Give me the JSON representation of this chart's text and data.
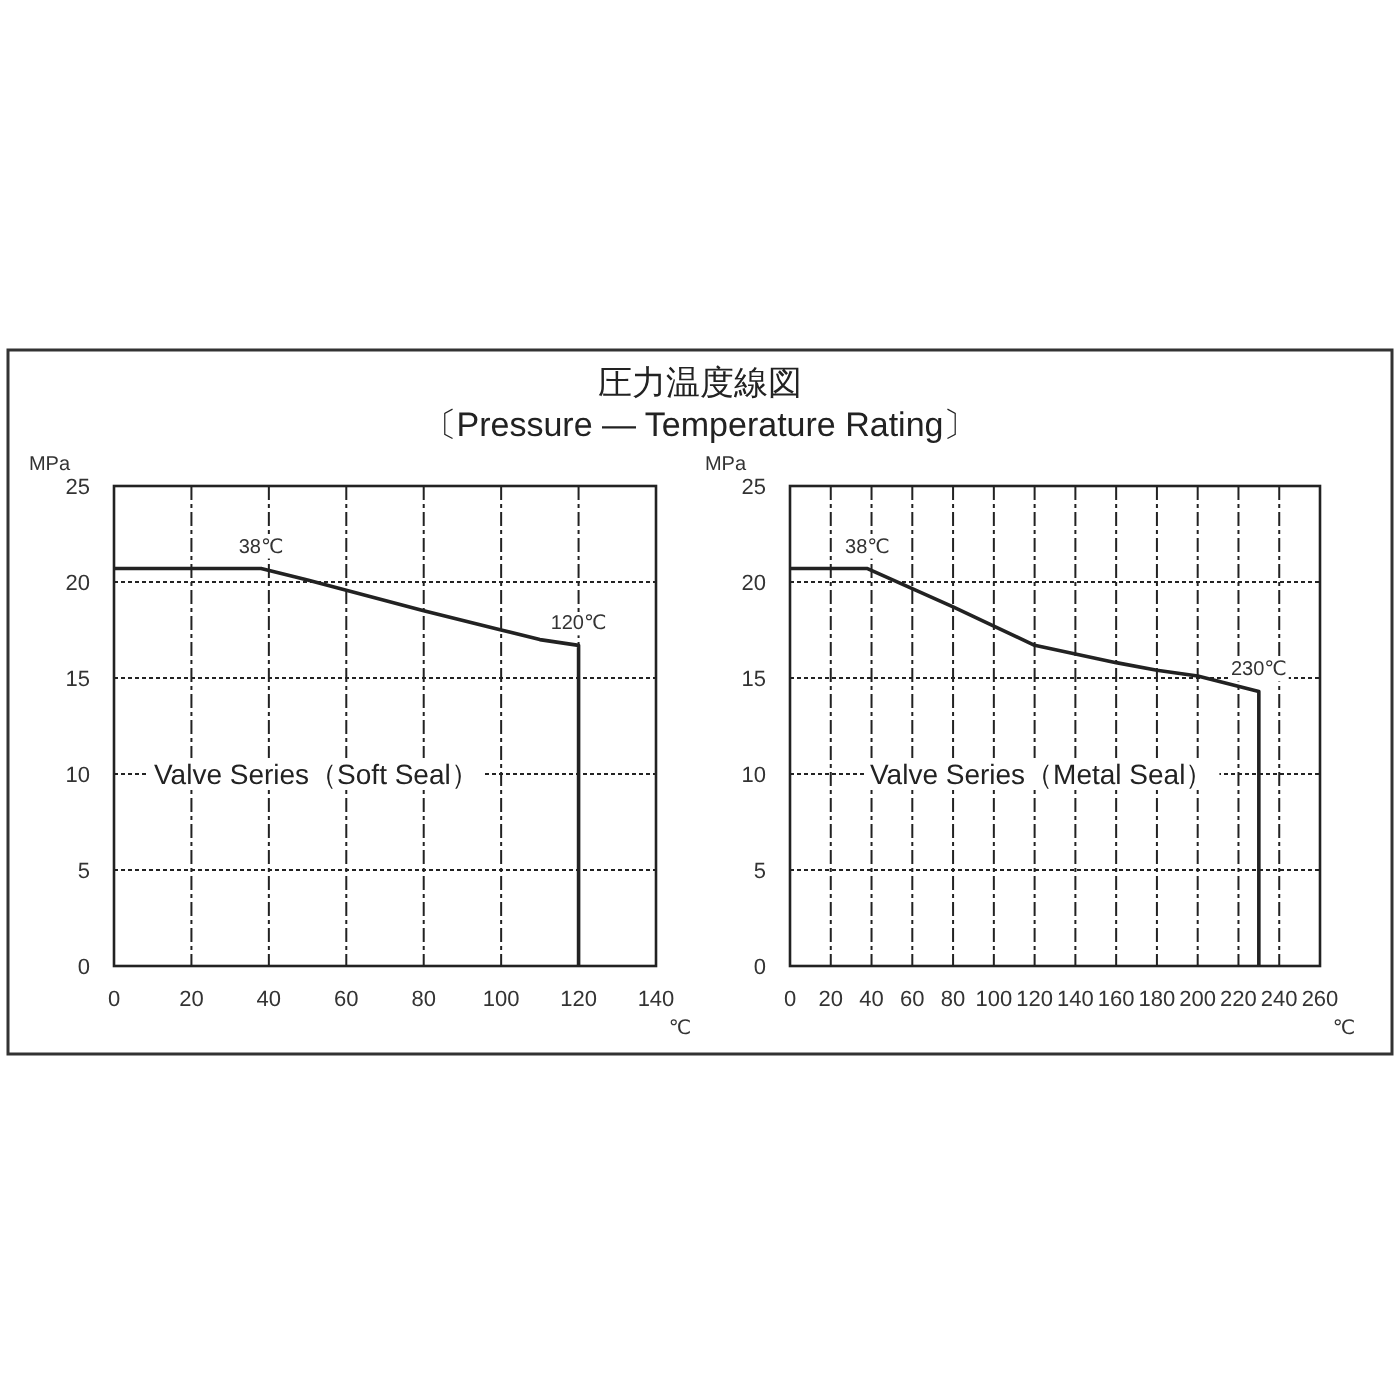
{
  "chart_data": [
    {
      "type": "line",
      "title": "圧力温度線図",
      "subtitle": "〔Pressure — Temperature Rating〕",
      "xlabel": "℃",
      "ylabel": "MPa",
      "series": [
        {
          "color": "#222222",
          "x": [
            0,
            38,
            50,
            80,
            100,
            110,
            120,
            120
          ],
          "values": [
            20.7,
            20.7,
            20.1,
            18.5,
            17.5,
            17.0,
            16.7,
            0
          ]
        }
      ],
      "xlim": [
        0,
        140
      ],
      "xticks": [
        0,
        20,
        40,
        60,
        80,
        100,
        120,
        140
      ],
      "ylim": [
        0,
        25
      ],
      "yticks": [
        0,
        5,
        10,
        15,
        20,
        25
      ],
      "grid": true,
      "marker": "none",
      "line_style": "solid",
      "annotations": [
        {
          "text": "38℃",
          "x": 38,
          "y": 20.7
        },
        {
          "text": "120℃",
          "x": 120,
          "y": 16.7
        },
        "Valve Series（Soft Seal）"
      ]
    },
    {
      "type": "line",
      "xlabel": "℃",
      "ylabel": "MPa",
      "series": [
        {
          "color": "#222222",
          "x": [
            0,
            38,
            80,
            100,
            120,
            160,
            180,
            200,
            230,
            230
          ],
          "values": [
            20.7,
            20.7,
            18.7,
            17.7,
            16.7,
            15.8,
            15.4,
            15.1,
            14.3,
            0
          ]
        }
      ],
      "xlim": [
        0,
        260
      ],
      "xticks": [
        0,
        20,
        40,
        60,
        80,
        100,
        120,
        140,
        160,
        180,
        200,
        220,
        240,
        260
      ],
      "ylim": [
        0,
        25
      ],
      "yticks": [
        0,
        5,
        10,
        15,
        20,
        25
      ],
      "grid": true,
      "marker": "none",
      "line_style": "solid",
      "annotations": [
        {
          "text": "38℃",
          "x": 38,
          "y": 20.7
        },
        {
          "text": "230℃",
          "x": 230,
          "y": 14.3
        },
        "Valve Series（Metal Seal）"
      ]
    }
  ]
}
